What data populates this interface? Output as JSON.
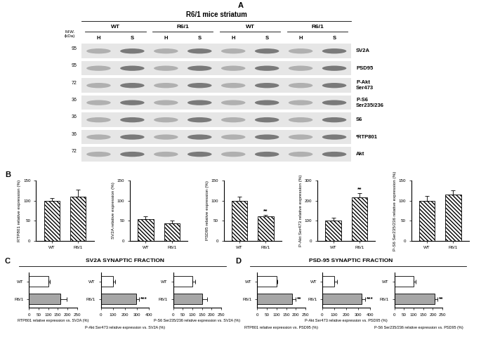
{
  "figure": {
    "panel_labels": [
      "A",
      "B",
      "C",
      "D"
    ],
    "blot": {
      "title": "R6/1 mice striatum",
      "groups": [
        "WT",
        "R6/1",
        "WT",
        "R6/1"
      ],
      "lanes": [
        "H",
        "S",
        "H",
        "S",
        "H",
        "S",
        "H",
        "S"
      ],
      "mw_header": "M.W.\n(kDa)",
      "proteins": [
        {
          "name": "SV2A",
          "mw": 95
        },
        {
          "name": "PSD95",
          "mw": 95
        },
        {
          "name": "P-Akt\nSer473",
          "mw": 72
        },
        {
          "name": "P-S6\nSer235/236",
          "mw": 36
        },
        {
          "name": "S6",
          "mw": 36
        },
        {
          "name": "*RTP801",
          "mw": 36
        },
        {
          "name": "Akt",
          "mw": 72
        }
      ]
    },
    "section_titles": [
      "SV2A SYNAPTIC FRACTION",
      "PSD-95 SYNAPTIC FRACTION"
    ]
  },
  "chart_data": [
    {
      "type": "bar",
      "ylabel": "RTP801 relative expression (%)",
      "categories": [
        "WT",
        "R6/1"
      ],
      "values": [
        100,
        110
      ],
      "errors": [
        6,
        17
      ],
      "ylim": [
        0,
        150
      ],
      "yticks": [
        0,
        50,
        100,
        150
      ],
      "color": "#ffffff"
    },
    {
      "type": "bar",
      "ylabel": "SV2A relative expression (%)",
      "categories": [
        "WT",
        "R6/1"
      ],
      "values": [
        54,
        44
      ],
      "errors": [
        7,
        6
      ],
      "ylim": [
        0,
        150
      ],
      "yticks": [
        0,
        50,
        100,
        150
      ],
      "color": "#ffffff"
    },
    {
      "type": "bar",
      "ylabel": "PSD95 relative expression (%)",
      "categories": [
        "WT",
        "R6/1"
      ],
      "values": [
        100,
        60
      ],
      "errors": [
        9,
        4
      ],
      "ylim": [
        0,
        150
      ],
      "yticks": [
        0,
        50,
        100,
        150
      ],
      "color": "#ffffff",
      "annotations": [
        {
          "category": "R6/1",
          "text": "**"
        }
      ]
    },
    {
      "type": "bar",
      "ylabel": "P-Akt Ser473 relative expression (%)",
      "categories": [
        "WT",
        "R6/1"
      ],
      "values": [
        100,
        215
      ],
      "errors": [
        15,
        22
      ],
      "ylim": [
        0,
        300
      ],
      "yticks": [
        0,
        100,
        200,
        300
      ],
      "color": "#ffffff",
      "annotations": [
        {
          "category": "R6/1",
          "text": "**"
        }
      ]
    },
    {
      "type": "bar",
      "ylabel": "P-S6 Ser235/236 relative expression (%)",
      "categories": [
        "WT",
        "R6/1"
      ],
      "values": [
        100,
        115
      ],
      "errors": [
        12,
        10
      ],
      "ylim": [
        0,
        150
      ],
      "yticks": [
        0,
        50,
        100,
        150
      ],
      "color": "#ffffff"
    },
    {
      "type": "bar",
      "orientation": "horizontal",
      "xlabel": "RTP801 relative expression vs. SV2A (%)",
      "categories": [
        "WT",
        "R6/1"
      ],
      "values": [
        100,
        165
      ],
      "errors": [
        10,
        30
      ],
      "xlim": [
        0,
        250
      ],
      "xticks": [
        0,
        50,
        100,
        150,
        200,
        250
      ],
      "colors": [
        "#ffffff",
        "#a6a6a6"
      ]
    },
    {
      "type": "bar",
      "orientation": "horizontal",
      "xlabel": "P-Akt Ser473 relative expression vs. SV2A (%)",
      "categories": [
        "WT",
        "R6/1"
      ],
      "values": [
        100,
        290
      ],
      "errors": [
        15,
        25
      ],
      "xlim": [
        0,
        400
      ],
      "xticks": [
        0,
        100,
        200,
        300,
        400
      ],
      "colors": [
        "#ffffff",
        "#a6a6a6"
      ],
      "annotations": [
        {
          "category": "R6/1",
          "text": "***"
        }
      ]
    },
    {
      "type": "bar",
      "orientation": "horizontal",
      "xlabel": "P-S6 Ser235/236 relative expression vs. SV2A (%)",
      "categories": [
        "WT",
        "R6/1"
      ],
      "values": [
        100,
        150
      ],
      "errors": [
        15,
        25
      ],
      "xlim": [
        0,
        250
      ],
      "xticks": [
        0,
        50,
        100,
        150,
        200,
        250
      ],
      "colors": [
        "#ffffff",
        "#a6a6a6"
      ]
    },
    {
      "type": "bar",
      "orientation": "horizontal",
      "xlabel": "RTP801 relative expression vs. PSD95 (%)",
      "categories": [
        "WT",
        "R6/1"
      ],
      "values": [
        100,
        180
      ],
      "errors": [
        5,
        20
      ],
      "xlim": [
        0,
        250
      ],
      "xticks": [
        0,
        50,
        100,
        150,
        200,
        250
      ],
      "colors": [
        "#ffffff",
        "#a6a6a6"
      ],
      "annotations": [
        {
          "category": "R6/1",
          "text": "**"
        }
      ]
    },
    {
      "type": "bar",
      "orientation": "horizontal",
      "xlabel": "P-Akt Ser473 relative expression vs. PSD95 (%)",
      "categories": [
        "WT",
        "R6/1"
      ],
      "values": [
        100,
        330
      ],
      "errors": [
        20,
        25
      ],
      "xlim": [
        0,
        400
      ],
      "xticks": [
        0,
        100,
        200,
        300,
        400
      ],
      "colors": [
        "#ffffff",
        "#a6a6a6"
      ],
      "annotations": [
        {
          "category": "R6/1",
          "text": "***"
        }
      ]
    },
    {
      "type": "bar",
      "orientation": "horizontal",
      "xlabel": "P-S6 Ser235/236 relative expression vs. PSD95 (%)",
      "categories": [
        "WT",
        "R6/1"
      ],
      "values": [
        100,
        210
      ],
      "errors": [
        12,
        15
      ],
      "xlim": [
        0,
        250
      ],
      "xticks": [
        0,
        50,
        100,
        150,
        200,
        250
      ],
      "colors": [
        "#ffffff",
        "#a6a6a6"
      ],
      "annotations": [
        {
          "category": "R6/1",
          "text": "**"
        }
      ]
    }
  ]
}
